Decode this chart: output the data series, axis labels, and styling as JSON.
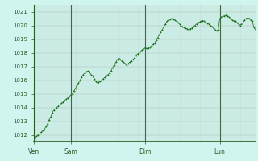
{
  "background_color": "#cff5ee",
  "plot_bg_color": "#cff5ee",
  "line_color": "#1a6b1a",
  "marker_color": "#1a6b1a",
  "grid_color_v": "#b0b8b0",
  "grid_color_h": "#b0b8b0",
  "vline_color": "#446644",
  "axis_color": "#2a5a2a",
  "tick_label_color": "#2a5a2a",
  "ylim": [
    1011.5,
    1021.5
  ],
  "yticks": [
    1012,
    1013,
    1014,
    1015,
    1016,
    1017,
    1018,
    1019,
    1020,
    1021
  ],
  "day_labels": [
    "Ven",
    "Sam",
    "Dim",
    "Lun"
  ],
  "day_positions": [
    0,
    24,
    72,
    120
  ],
  "total_points": 144,
  "values": [
    1011.8,
    1011.8,
    1011.9,
    1012.0,
    1012.1,
    1012.2,
    1012.3,
    1012.4,
    1012.6,
    1012.8,
    1013.1,
    1013.3,
    1013.6,
    1013.8,
    1013.9,
    1014.0,
    1014.1,
    1014.2,
    1014.3,
    1014.4,
    1014.5,
    1014.6,
    1014.7,
    1014.8,
    1014.9,
    1015.0,
    1015.2,
    1015.4,
    1015.6,
    1015.8,
    1016.0,
    1016.2,
    1016.4,
    1016.5,
    1016.6,
    1016.65,
    1016.6,
    1016.4,
    1016.3,
    1016.1,
    1015.9,
    1015.8,
    1015.85,
    1015.9,
    1016.0,
    1016.1,
    1016.2,
    1016.3,
    1016.4,
    1016.5,
    1016.7,
    1016.9,
    1017.1,
    1017.3,
    1017.5,
    1017.6,
    1017.5,
    1017.4,
    1017.3,
    1017.2,
    1017.1,
    1017.2,
    1017.3,
    1017.4,
    1017.5,
    1017.6,
    1017.8,
    1017.9,
    1018.0,
    1018.1,
    1018.2,
    1018.3,
    1018.35,
    1018.3,
    1018.35,
    1018.4,
    1018.5,
    1018.6,
    1018.7,
    1018.9,
    1019.1,
    1019.3,
    1019.5,
    1019.7,
    1019.9,
    1020.1,
    1020.3,
    1020.4,
    1020.45,
    1020.5,
    1020.45,
    1020.4,
    1020.3,
    1020.2,
    1020.1,
    1020.0,
    1019.9,
    1019.85,
    1019.8,
    1019.75,
    1019.7,
    1019.75,
    1019.8,
    1019.9,
    1020.0,
    1020.1,
    1020.2,
    1020.25,
    1020.3,
    1020.35,
    1020.3,
    1020.2,
    1020.15,
    1020.1,
    1020.0,
    1019.9,
    1019.8,
    1019.7,
    1019.6,
    1019.65,
    1020.5,
    1020.6,
    1020.65,
    1020.7,
    1020.75,
    1020.7,
    1020.6,
    1020.5,
    1020.4,
    1020.35,
    1020.3,
    1020.2,
    1020.1,
    1020.0,
    1020.1,
    1020.2,
    1020.4,
    1020.5,
    1020.55,
    1020.5,
    1020.4,
    1020.3,
    1019.85,
    1019.7
  ]
}
